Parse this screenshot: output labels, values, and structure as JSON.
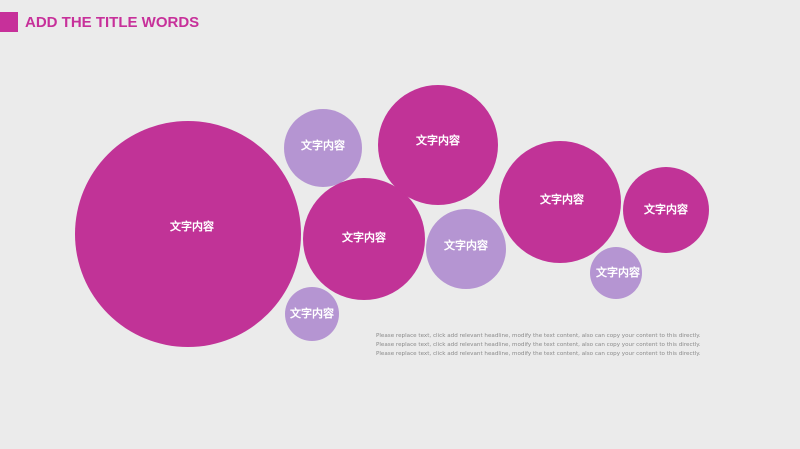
{
  "header": {
    "title": "ADD THE TITLE WORDS"
  },
  "nodes": [
    {
      "label": "文字内容"
    },
    {
      "label": "文字内容"
    },
    {
      "label": "文字内容"
    },
    {
      "label": "文字内容"
    },
    {
      "label": "文字内容"
    },
    {
      "label": "文字内容"
    },
    {
      "label": "文字内容"
    },
    {
      "label": "文字内容"
    },
    {
      "label": "文字内容"
    }
  ],
  "body": {
    "lines": [
      "Please replace text, click add relevant headline, modify the text content, also can copy your content to this directly.",
      "Please replace text, click add relevant headline, modify the text content, also can copy your content to this directly.",
      "Please replace text, click add relevant headline, modify the text content, also can copy your content to this directly."
    ]
  }
}
